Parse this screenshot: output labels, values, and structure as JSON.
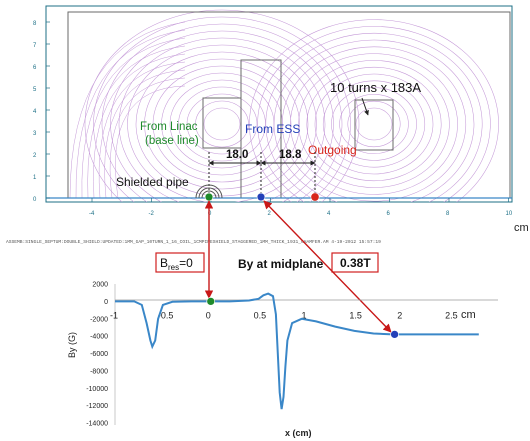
{
  "colors": {
    "field_lines": "#c59ad8",
    "steel_outline": "#6a6a6a",
    "axis_teal": "#1c6f86",
    "plot_line": "#3a87c8",
    "green_marker": "#1e8a2b",
    "blue_marker": "#2440b8",
    "red_marker": "#d8261c",
    "box_red": "#d02020",
    "arrow_red": "#c81818"
  },
  "top_panel": {
    "y_ticks": [
      "8",
      "7",
      "6",
      "5",
      "4",
      "3",
      "2",
      "1",
      "0"
    ],
    "x_ticks": [
      "-4",
      "-2",
      "0",
      "2",
      "4",
      "6",
      "8",
      "10"
    ],
    "x_unit": "cm",
    "labels": {
      "turns": "10 turns x 183A",
      "from_linac_1": "From Linac",
      "from_linac_2": "(base line)",
      "from_ess": "From ESS",
      "outgoing": "Outgoing",
      "shielded_pipe": "Shielded pipe",
      "dim1": "18.0",
      "dim2": "18.8"
    },
    "footer": "ASSEMB:SINGLE_SEPTUM:DOUBLE_SHIELD:UPDATED:1MM_GAP_10TURN_1_16_COIL_1CMPIPESHIELD_STAGGERED_1MM_THICK_1931_CHAMFER.AM   4-19-2012   15:57:19"
  },
  "callouts": {
    "bres": "B",
    "bres_sub": "res",
    "bres_val": "=0",
    "title": "By at midplane",
    "field": "0.38T"
  },
  "chart_data": {
    "type": "line",
    "ylabel": "By (G)",
    "xlabel": "x (cm)",
    "xunit": "cm",
    "xlim": [
      -1,
      3
    ],
    "ylim": [
      -14000,
      2000
    ],
    "x_ticks": [
      -1,
      -0.5,
      0,
      0.5,
      1,
      1.5,
      2,
      2.5
    ],
    "x_tick_labels": [
      "-1",
      "-0.5",
      "0",
      "0.5",
      "1",
      "1.5",
      "2",
      "2.5"
    ],
    "y_ticks": [
      2000,
      0,
      -2000,
      -4000,
      -6000,
      -8000,
      -10000,
      -12000,
      -14000
    ],
    "series": [
      {
        "x": [
          -1.0,
          -0.8,
          -0.72,
          -0.67,
          -0.63,
          -0.61,
          -0.58,
          -0.55,
          -0.5,
          -0.4,
          -0.2,
          0.0,
          0.2,
          0.4,
          0.5,
          0.55,
          0.6,
          0.65,
          0.68,
          0.7,
          0.72,
          0.74,
          0.76,
          0.78,
          0.8,
          0.85,
          0.95,
          1.1,
          1.3,
          1.5,
          1.7,
          1.9,
          2.2,
          2.5,
          2.8
        ],
        "y": [
          0,
          0,
          -400,
          -2500,
          -4500,
          -5200,
          -4500,
          -2000,
          -400,
          -50,
          0,
          0,
          0,
          100,
          300,
          700,
          900,
          600,
          -1500,
          -6000,
          -10500,
          -12400,
          -11000,
          -7500,
          -4500,
          -2500,
          -2000,
          -2300,
          -2900,
          -3400,
          -3700,
          -3800,
          -3800,
          -3800,
          -3800
        ]
      }
    ],
    "points": [
      {
        "x": 0,
        "y": 0
      },
      {
        "x": 1.92,
        "y": -3800
      }
    ]
  }
}
